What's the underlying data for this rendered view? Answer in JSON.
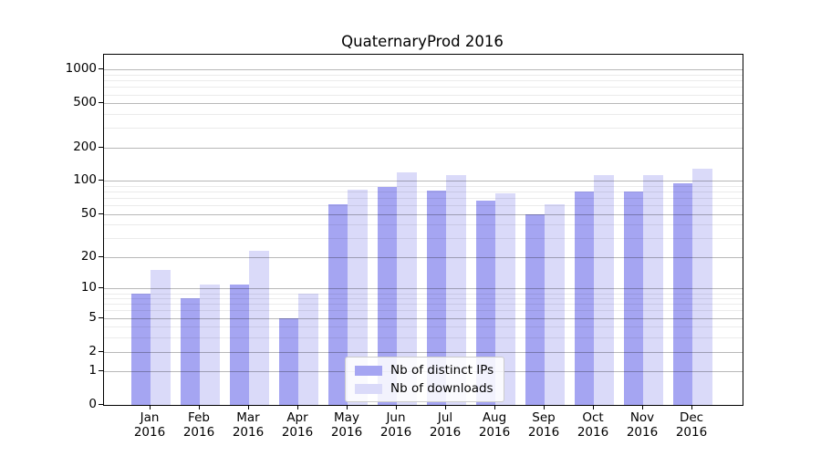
{
  "title": "QuaternaryProd 2016",
  "legend": {
    "items": [
      {
        "label": "Nb of distinct IPs",
        "color": "#a5a5f2"
      },
      {
        "label": "Nb of downloads",
        "color": "#dadaf9"
      }
    ]
  },
  "y_axis": {
    "tick_labels": [
      "1000",
      "500",
      "200",
      "100",
      "50",
      "20",
      "10",
      "5",
      "2",
      "1",
      "0"
    ],
    "tick_values": [
      1000,
      500,
      200,
      100,
      50,
      20,
      10,
      5,
      2,
      1,
      0
    ],
    "minor_tick_values": [
      3,
      4,
      6,
      7,
      8,
      9,
      30,
      40,
      60,
      70,
      80,
      90,
      300,
      400,
      600,
      700,
      800,
      900
    ],
    "scale": "log10(1+v)"
  },
  "x_axis": {
    "months": [
      "Jan",
      "Feb",
      "Mar",
      "Apr",
      "May",
      "Jun",
      "Jul",
      "Aug",
      "Sep",
      "Oct",
      "Nov",
      "Dec"
    ],
    "year": "2016"
  },
  "chart_data": {
    "type": "bar",
    "title": "QuaternaryProd 2016",
    "categories": [
      "Jan 2016",
      "Feb 2016",
      "Mar 2016",
      "Apr 2016",
      "May 2016",
      "Jun 2016",
      "Jul 2016",
      "Aug 2016",
      "Sep 2016",
      "Oct 2016",
      "Nov 2016",
      "Dec 2016"
    ],
    "series": [
      {
        "name": "Nb of distinct IPs",
        "color": "#a5a5f2",
        "values": [
          9,
          8,
          11,
          5,
          62,
          89,
          82,
          67,
          50,
          81,
          81,
          96
        ]
      },
      {
        "name": "Nb of downloads",
        "color": "#dadaf9",
        "values": [
          15,
          11,
          23,
          9,
          84,
          120,
          112,
          77,
          61,
          112,
          112,
          130
        ]
      }
    ],
    "xlabel": "",
    "ylabel": "",
    "ylim": [
      0,
      1000
    ],
    "yscale": "log10(1+v) symlog-like",
    "grid": true,
    "legend_position": "lower center"
  }
}
